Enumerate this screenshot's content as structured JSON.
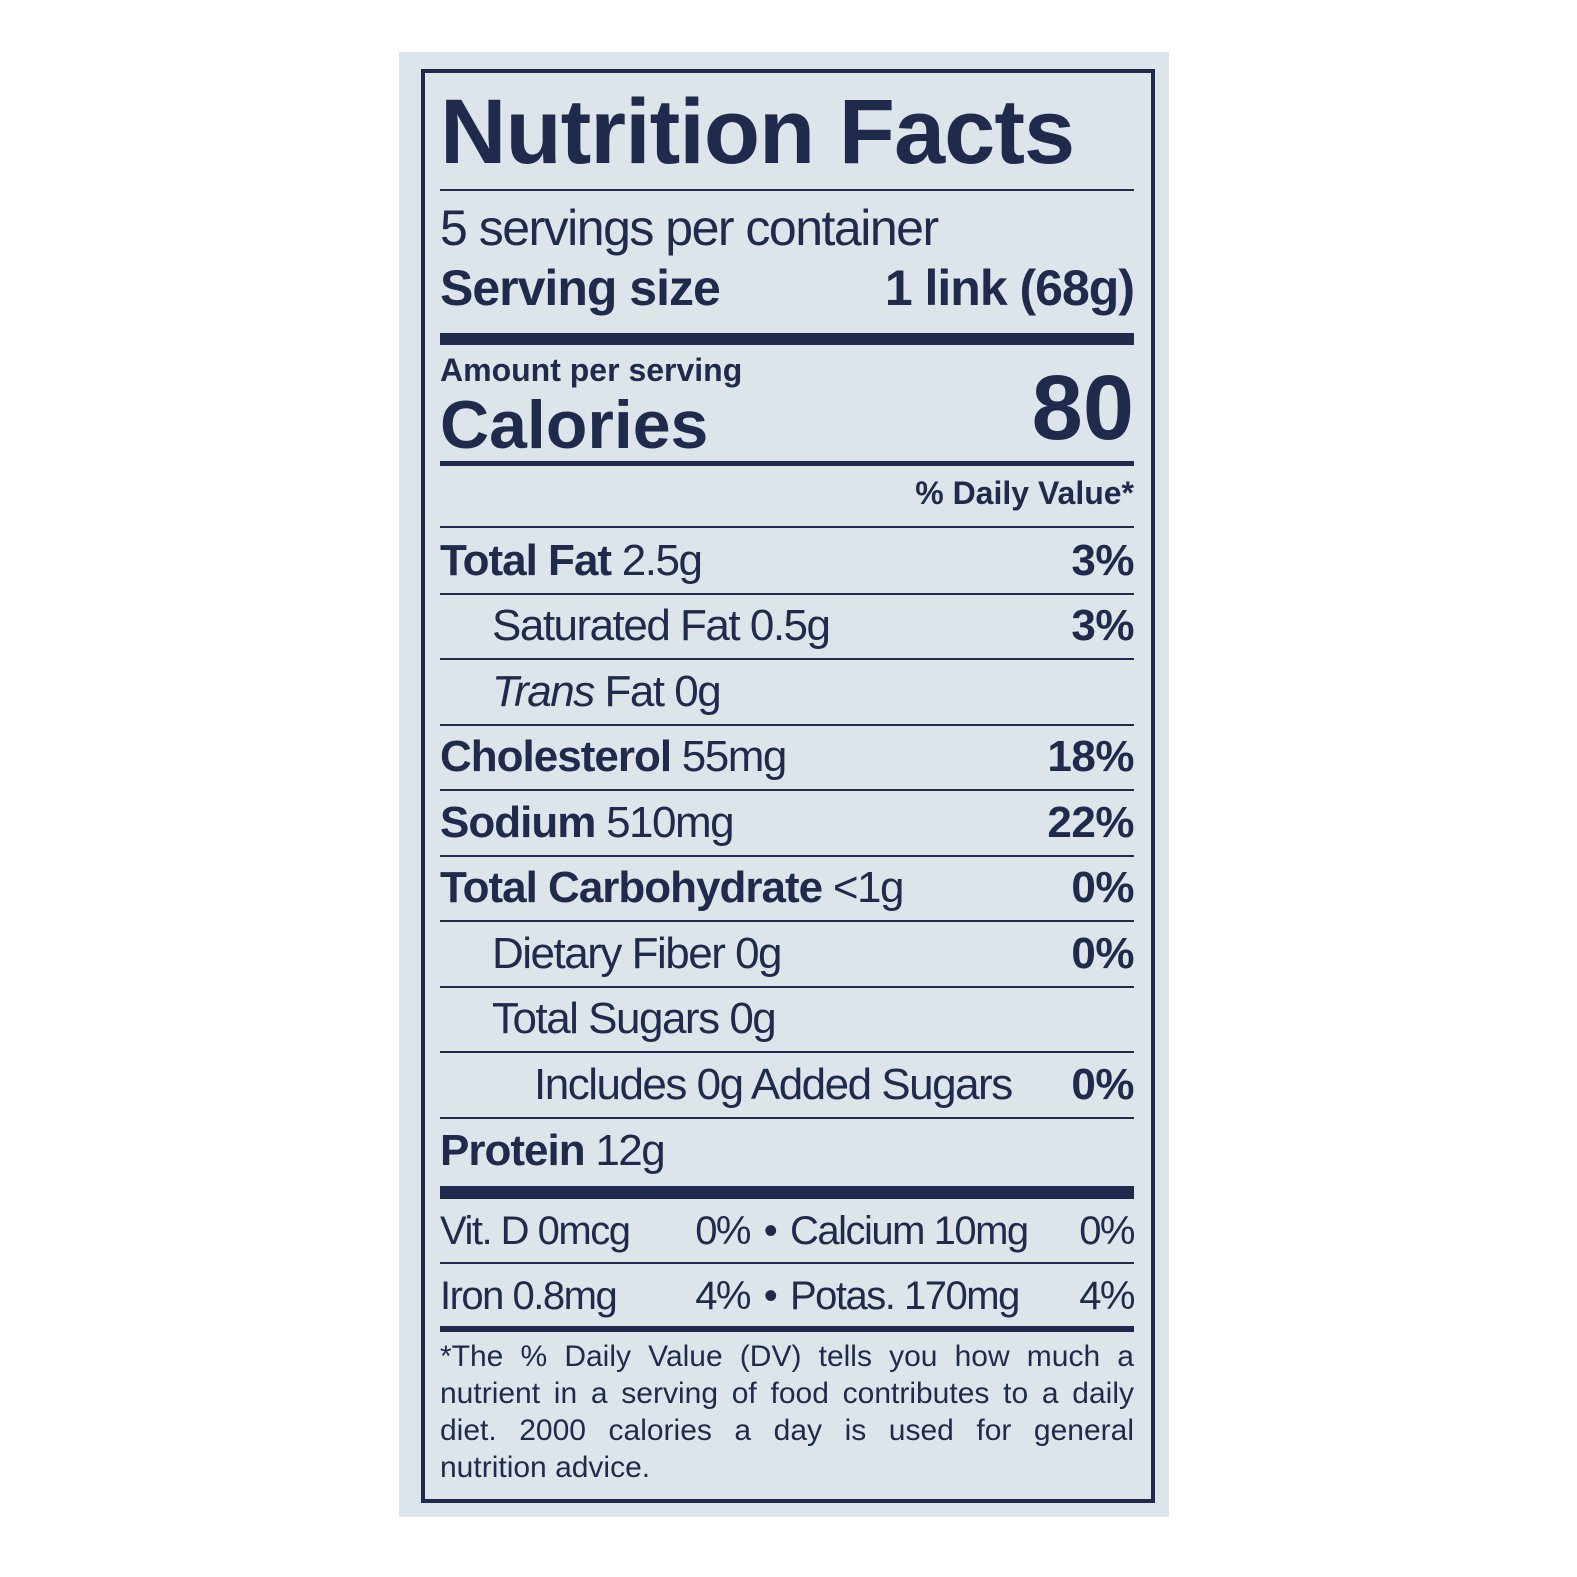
{
  "title": "Nutrition Facts",
  "servings_per_container": "5 servings per container",
  "serving_size": {
    "label": "Serving size",
    "value": "1 link (68g)"
  },
  "amount_per_serving": "Amount per serving",
  "calories": {
    "label": "Calories",
    "value": "80"
  },
  "daily_value_header": "% Daily Value*",
  "nutrients": [
    {
      "name": "Total Fat",
      "amount": "2.5g",
      "dv": "3%"
    },
    {
      "name": "Saturated Fat",
      "amount": "0.5g",
      "dv": "3%"
    },
    {
      "name": "Trans",
      "name_rest": "Fat",
      "amount": "0g",
      "dv": ""
    },
    {
      "name": "Cholesterol",
      "amount": "55mg",
      "dv": "18%"
    },
    {
      "name": "Sodium",
      "amount": "510mg",
      "dv": "22%"
    },
    {
      "name": "Total Carbohydrate",
      "amount": "<1g",
      "dv": "0%"
    },
    {
      "name": "Dietary Fiber",
      "amount": "0g",
      "dv": "0%"
    },
    {
      "name": "Total Sugars",
      "amount": "0g",
      "dv": ""
    },
    {
      "name": "Includes 0g Added Sugars",
      "amount": "",
      "dv": "0%"
    },
    {
      "name": "Protein",
      "amount": "12g",
      "dv": ""
    }
  ],
  "minerals": [
    [
      {
        "label": "Vit. D 0mcg",
        "dv": "0%"
      },
      {
        "label": "Calcium 10mg",
        "dv": "0%"
      }
    ],
    [
      {
        "label": "Iron 0.8mg",
        "dv": "4%"
      },
      {
        "label": "Potas. 170mg",
        "dv": "4%"
      }
    ]
  ],
  "separator": "•",
  "footnote": "*The % Daily Value (DV) tells you how much a nutrient in a serving of food contributes to a daily diet. 2000 calories a day is used for general nutrition advice.",
  "colors": {
    "ink": "#1f2a4c",
    "background": "#dde5ea"
  }
}
